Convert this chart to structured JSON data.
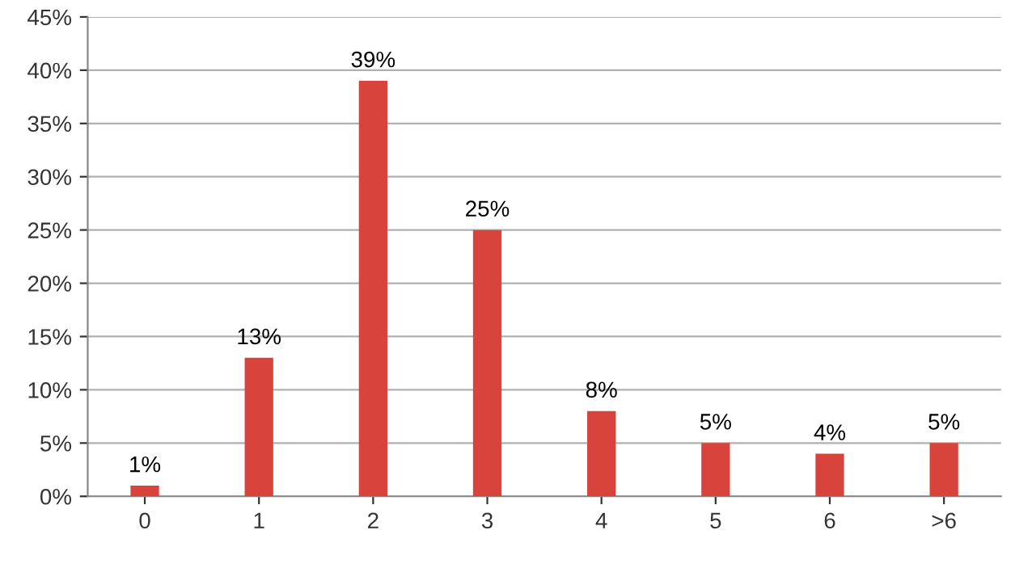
{
  "chart_data": {
    "type": "bar",
    "categories": [
      "0",
      "1",
      "2",
      "3",
      "4",
      "5",
      "6",
      ">6"
    ],
    "values": [
      1,
      13,
      39,
      25,
      8,
      5,
      4,
      5
    ],
    "value_labels": [
      "1%",
      "13%",
      "39%",
      "25%",
      "8%",
      "5%",
      "4%",
      "5%"
    ],
    "color": "#d8433b",
    "ylim": [
      0,
      45
    ],
    "yticks": [
      {
        "value": 0,
        "label": "0%"
      },
      {
        "value": 5,
        "label": "5%"
      },
      {
        "value": 10,
        "label": "10%"
      },
      {
        "value": 15,
        "label": "15%"
      },
      {
        "value": 20,
        "label": "20%"
      },
      {
        "value": 25,
        "label": "25%"
      },
      {
        "value": 30,
        "label": "30%"
      },
      {
        "value": 35,
        "label": "35%"
      },
      {
        "value": 40,
        "label": "40%"
      },
      {
        "value": 45,
        "label": "45%"
      }
    ],
    "grid": "y"
  }
}
